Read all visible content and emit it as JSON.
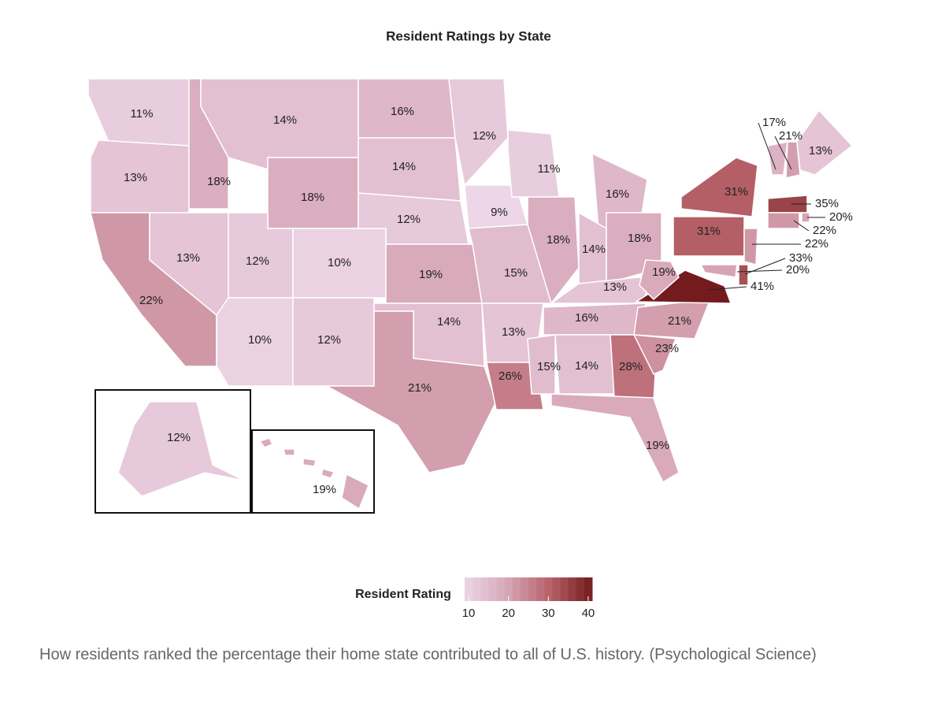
{
  "chart_data": {
    "type": "choropleth",
    "title": "Resident Ratings by State",
    "values": [
      11,
      13,
      22,
      18,
      13,
      14,
      18,
      12,
      10,
      10,
      12,
      16,
      14,
      12,
      19,
      14,
      21,
      12,
      9,
      15,
      13,
      26,
      11,
      18,
      16,
      14,
      18,
      13,
      16,
      15,
      14,
      28,
      19,
      23,
      21,
      41,
      19,
      31,
      31,
      17,
      21,
      13,
      35,
      20,
      22,
      22,
      33,
      20,
      12,
      19
    ],
    "value_labels": [
      "11%",
      "13%",
      "22%",
      "18%",
      "13%",
      "14%",
      "18%",
      "12%",
      "10%",
      "10%",
      "12%",
      "16%",
      "14%",
      "12%",
      "19%",
      "14%",
      "21%",
      "12%",
      "9%",
      "15%",
      "13%",
      "26%",
      "11%",
      "18%",
      "16%",
      "14%",
      "18%",
      "13%",
      "16%",
      "15%",
      "14%",
      "28%",
      "19%",
      "23%",
      "21%",
      "41%",
      "19%",
      "31%",
      "31%",
      "17%",
      "21%",
      "13%",
      "35%",
      "20%",
      "22%",
      "22%",
      "33%",
      "20%",
      "12%",
      "19%"
    ],
    "colors": [
      "#ecd6e7",
      "#d7a7b7",
      "#b8626a",
      "#731b1d"
    ],
    "colorbar": {
      "label": "Resident Rating",
      "lim": [
        9,
        41
      ],
      "ticks": [
        10,
        20,
        30,
        40
      ]
    }
  },
  "caption": "How residents ranked the percentage their home state contributed to all of U.S. history. (Psychological Science)"
}
